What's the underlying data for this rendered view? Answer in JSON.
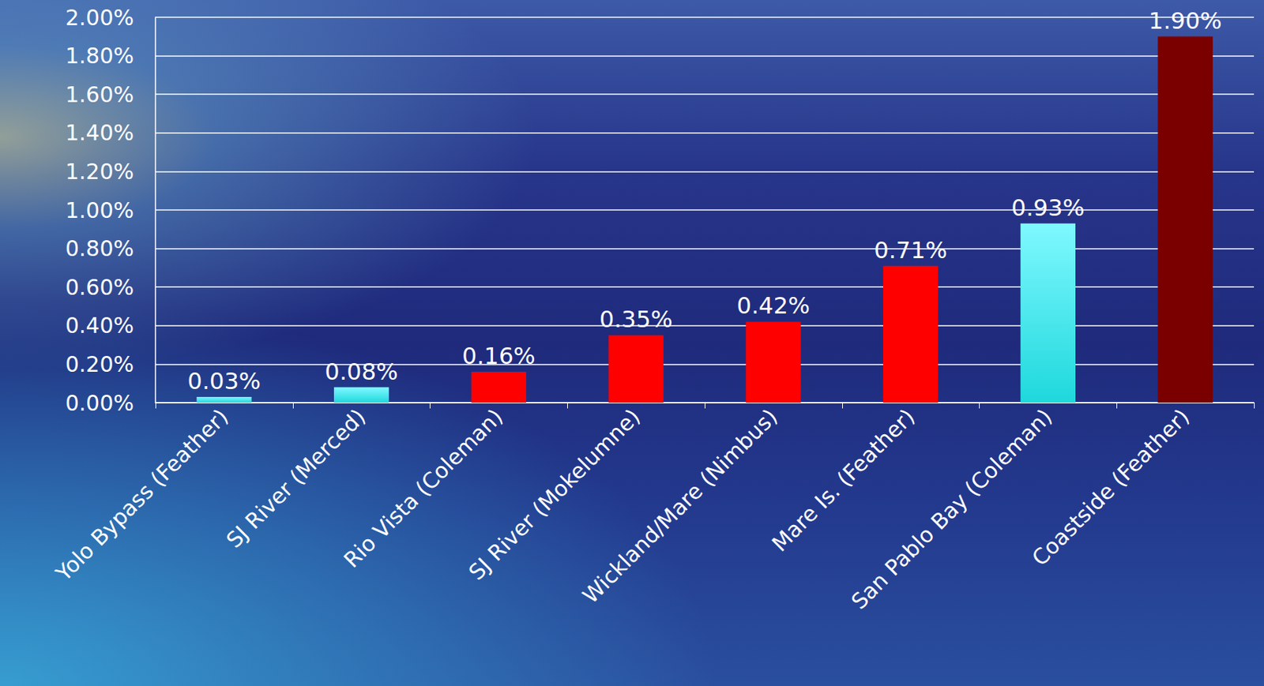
{
  "chart_data": {
    "type": "bar",
    "categories": [
      "Yolo Bypass (Feather)",
      "SJ River (Merced)",
      "Rio Vista (Coleman)",
      "SJ River (Mokelumne)",
      "Wickland/Mare (Nimbus)",
      "Mare Is. (Feather)",
      "San Pablo Bay (Coleman)",
      "Coastside (Feather)"
    ],
    "values": [
      0.03,
      0.08,
      0.16,
      0.35,
      0.42,
      0.71,
      0.93,
      1.9
    ],
    "value_labels": [
      "0.03%",
      "0.08%",
      "0.16%",
      "0.35%",
      "0.42%",
      "0.71%",
      "0.93%",
      "1.90%"
    ],
    "colors": [
      "#5fe8ec",
      "#5fe8ec",
      "#ff0000",
      "#ff0000",
      "#ff0000",
      "#ff0000",
      "#5fe8ec",
      "#7a0000"
    ],
    "ylim": [
      0,
      2
    ],
    "yticks": [
      {
        "value": 0,
        "label": "0.00%"
      },
      {
        "value": 0.2,
        "label": "0.20%"
      },
      {
        "value": 0.4,
        "label": "0.40%"
      },
      {
        "value": 0.6,
        "label": "0.60%"
      },
      {
        "value": 0.8,
        "label": "0.80%"
      },
      {
        "value": 1.0,
        "label": "1.00%"
      },
      {
        "value": 1.2,
        "label": "1.20%"
      },
      {
        "value": 1.4,
        "label": "1.40%"
      },
      {
        "value": 1.6,
        "label": "1.60%"
      },
      {
        "value": 1.8,
        "label": "1.80%"
      },
      {
        "value": 2.0,
        "label": "2.00%"
      }
    ],
    "grid": true,
    "data_labels": true
  }
}
